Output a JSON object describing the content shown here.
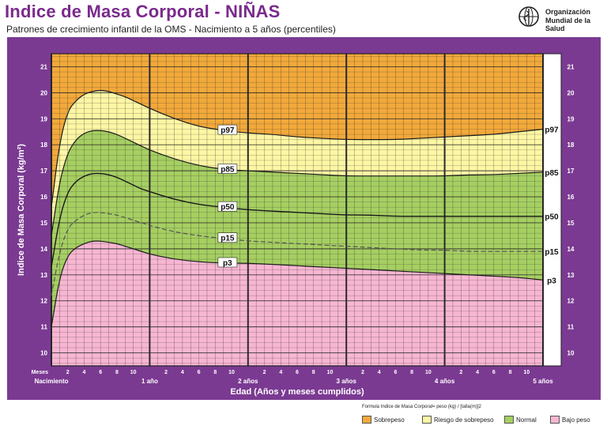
{
  "header": {
    "title": "Indice de Masa Corporal - NIÑAS",
    "subtitle": "Patrones de crecimiento infantil de la OMS - Nacimiento a 5 años (percentiles)",
    "org_line1": "Organización",
    "org_line2": "Mundial de la Salud"
  },
  "colors": {
    "frame": "#7b3a92",
    "sobrepeso": "#f2a93b",
    "riesgo": "#fdf6a4",
    "normal": "#a6cf62",
    "bajo": "#f7b6d2",
    "grid": "#2a2a2a",
    "line": "#1a1a1a"
  },
  "chart_data": {
    "type": "line",
    "title": "Indice de Masa Corporal - NIÑAS",
    "subtitle": "Patrones de crecimiento infantil de la OMS - Nacimiento a 5 años (percentiles)",
    "xlabel": "Edad (Años y meses cumplidos)",
    "ylabel": "Indice de Masa Corporal (kg/m²)",
    "x_units": "months",
    "xlim": [
      0,
      60
    ],
    "ylim": [
      9.5,
      21.5
    ],
    "y_ticks": [
      10,
      11,
      12,
      13,
      14,
      15,
      16,
      17,
      18,
      19,
      20,
      21
    ],
    "x_minor_label_title": "Meses",
    "x_minor_ticks": [
      {
        "month": 2,
        "label": "2"
      },
      {
        "month": 4,
        "label": "4"
      },
      {
        "month": 6,
        "label": "6"
      },
      {
        "month": 8,
        "label": "8"
      },
      {
        "month": 10,
        "label": "10"
      },
      {
        "month": 14,
        "label": "2"
      },
      {
        "month": 16,
        "label": "4"
      },
      {
        "month": 18,
        "label": "6"
      },
      {
        "month": 20,
        "label": "8"
      },
      {
        "month": 22,
        "label": "10"
      },
      {
        "month": 26,
        "label": "2"
      },
      {
        "month": 28,
        "label": "4"
      },
      {
        "month": 30,
        "label": "6"
      },
      {
        "month": 32,
        "label": "8"
      },
      {
        "month": 34,
        "label": "10"
      },
      {
        "month": 38,
        "label": "2"
      },
      {
        "month": 40,
        "label": "4"
      },
      {
        "month": 42,
        "label": "6"
      },
      {
        "month": 44,
        "label": "8"
      },
      {
        "month": 46,
        "label": "10"
      },
      {
        "month": 50,
        "label": "2"
      },
      {
        "month": 52,
        "label": "4"
      },
      {
        "month": 54,
        "label": "6"
      },
      {
        "month": 56,
        "label": "8"
      },
      {
        "month": 58,
        "label": "10"
      }
    ],
    "x_major_ticks": [
      {
        "month": 0,
        "label": "Nacimiento"
      },
      {
        "month": 12,
        "label": "1 año"
      },
      {
        "month": 24,
        "label": "2 años"
      },
      {
        "month": 36,
        "label": "3 años"
      },
      {
        "month": 48,
        "label": "4 años"
      },
      {
        "month": 60,
        "label": "5 años"
      }
    ],
    "x": [
      0,
      1,
      2,
      3,
      4,
      5,
      6,
      7,
      8,
      9,
      10,
      11,
      12,
      15,
      18,
      21,
      24,
      27,
      30,
      33,
      36,
      39,
      42,
      45,
      48,
      51,
      54,
      57,
      60
    ],
    "series": [
      {
        "name": "p97",
        "values": [
          15.6,
          18.1,
          19.3,
          19.7,
          19.95,
          20.05,
          20.1,
          20.05,
          19.95,
          19.85,
          19.7,
          19.55,
          19.4,
          19.0,
          18.7,
          18.55,
          18.45,
          18.4,
          18.3,
          18.25,
          18.2,
          18.2,
          18.2,
          18.25,
          18.3,
          18.35,
          18.4,
          18.5,
          18.6
        ]
      },
      {
        "name": "p85",
        "values": [
          14.5,
          16.6,
          17.7,
          18.2,
          18.45,
          18.55,
          18.55,
          18.5,
          18.4,
          18.25,
          18.1,
          17.95,
          17.8,
          17.45,
          17.2,
          17.05,
          17.0,
          16.95,
          16.9,
          16.85,
          16.8,
          16.8,
          16.8,
          16.8,
          16.8,
          16.85,
          16.85,
          16.9,
          16.95
        ]
      },
      {
        "name": "p50",
        "values": [
          13.3,
          15.2,
          16.2,
          16.6,
          16.8,
          16.9,
          16.9,
          16.85,
          16.75,
          16.6,
          16.45,
          16.3,
          16.2,
          15.9,
          15.7,
          15.6,
          15.5,
          15.45,
          15.4,
          15.35,
          15.3,
          15.3,
          15.25,
          15.25,
          15.25,
          15.25,
          15.25,
          15.25,
          15.25
        ]
      },
      {
        "name": "p15",
        "values": [
          12.2,
          13.9,
          14.8,
          15.1,
          15.3,
          15.4,
          15.4,
          15.35,
          15.3,
          15.2,
          15.1,
          15.0,
          14.9,
          14.65,
          14.5,
          14.4,
          14.3,
          14.25,
          14.2,
          14.15,
          14.1,
          14.05,
          14.0,
          13.95,
          13.95,
          13.9,
          13.9,
          13.9,
          13.9
        ]
      },
      {
        "name": "p3",
        "values": [
          11.0,
          12.9,
          13.75,
          14.05,
          14.2,
          14.3,
          14.3,
          14.25,
          14.2,
          14.1,
          14.0,
          13.9,
          13.8,
          13.6,
          13.5,
          13.45,
          13.45,
          13.4,
          13.35,
          13.3,
          13.25,
          13.2,
          13.15,
          13.1,
          13.05,
          13.0,
          12.95,
          12.9,
          12.8
        ]
      }
    ],
    "curve_labels_mid": [
      "p97",
      "p85",
      "p50",
      "p15",
      "p3"
    ],
    "curve_labels_end": [
      "p97",
      "p85",
      "p50",
      "p15",
      "p3"
    ]
  },
  "legend": {
    "formula": "Formula Indice de Masa Corporal= peso (kg) / [talla(m)]2",
    "items": [
      {
        "label": "Sobrepeso",
        "color": "#f2a93b"
      },
      {
        "label": "Riesgo de sobrepeso",
        "color": "#fdf6a4"
      },
      {
        "label": "Normal",
        "color": "#a6cf62"
      },
      {
        "label": "Bajo peso",
        "color": "#f7b6d2"
      }
    ]
  }
}
